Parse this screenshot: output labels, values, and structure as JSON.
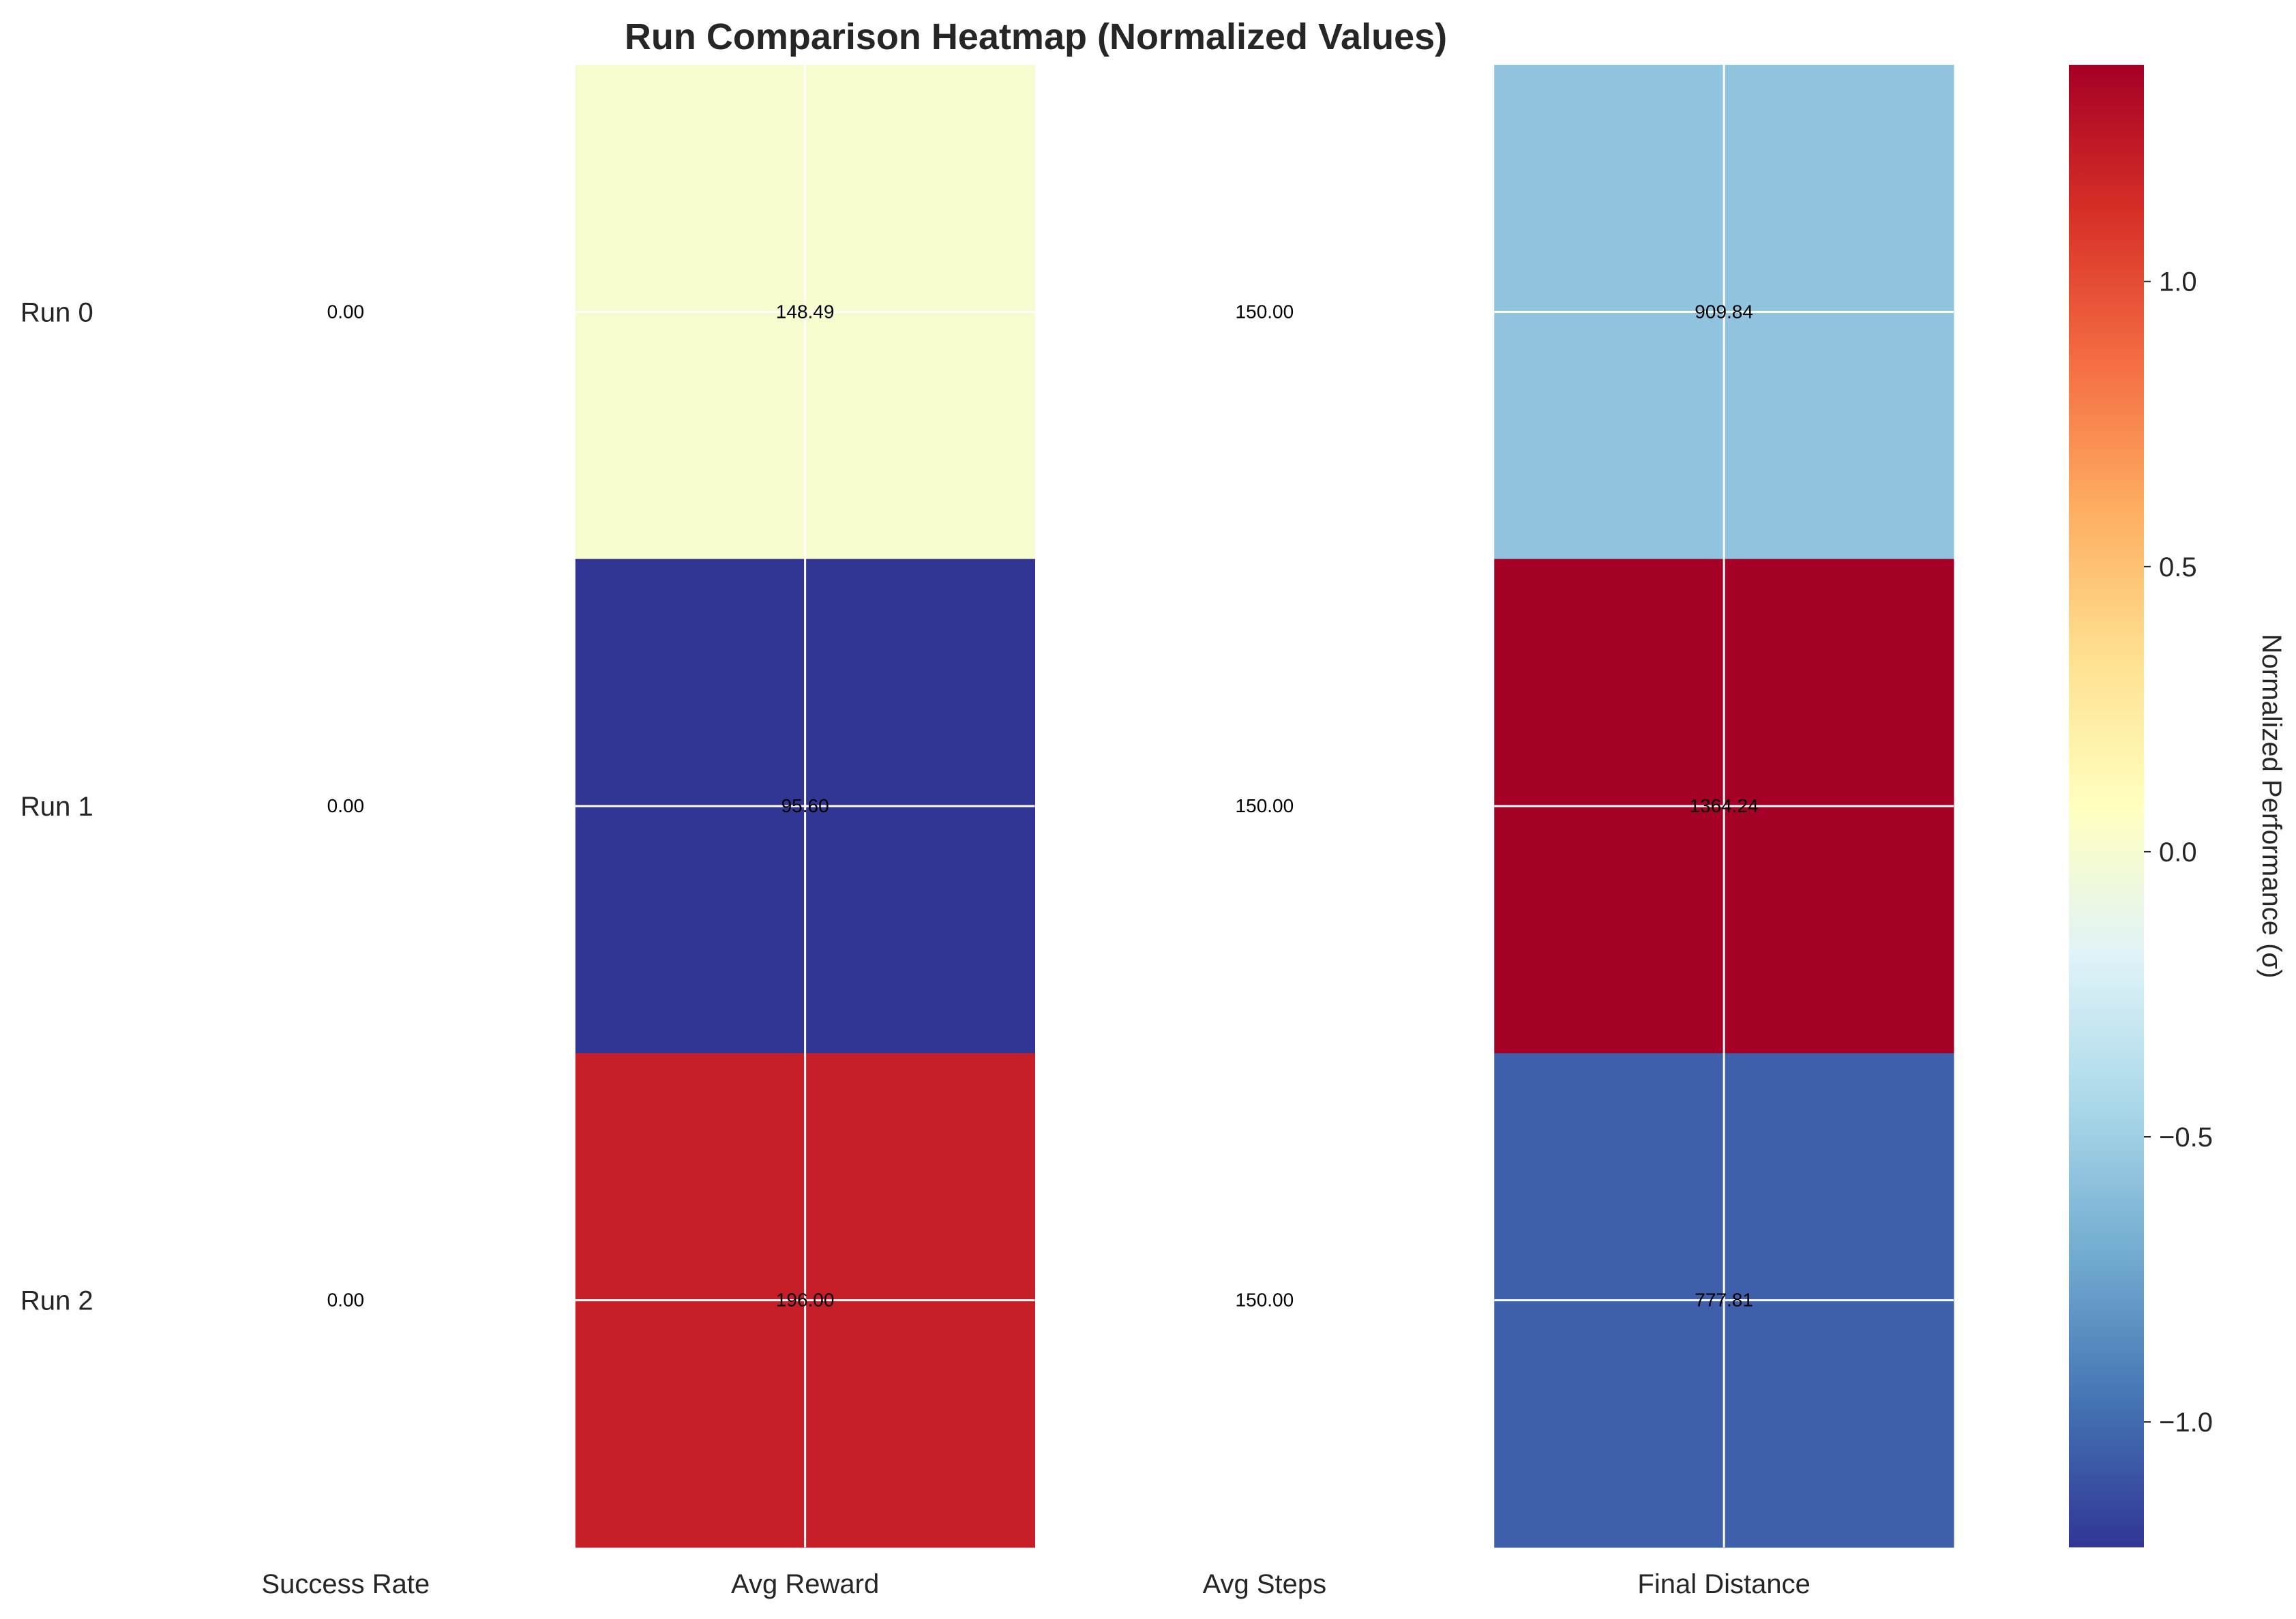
{
  "chart_data": {
    "type": "heatmap",
    "title": "Run Comparison Heatmap (Normalized Values)",
    "rows": [
      "Run 0",
      "Run 1",
      "Run 2"
    ],
    "columns": [
      "Success Rate",
      "Avg Reward",
      "Avg Steps",
      "Final Distance"
    ],
    "annotations": [
      [
        "0.00",
        "148.49",
        "150.00",
        "909.84"
      ],
      [
        "0.00",
        "95.60",
        "150.00",
        "1364.24"
      ],
      [
        "0.00",
        "196.00",
        "150.00",
        "777.81"
      ]
    ],
    "normalized": [
      [
        null,
        0.01,
        null,
        -0.57
      ],
      [
        null,
        -1.22,
        null,
        1.38
      ],
      [
        null,
        1.21,
        null,
        -1.05
      ]
    ],
    "colormap": "RdYlBu_r",
    "colorbar": {
      "label": "Normalized Performance (σ)",
      "range": [
        -1.22,
        1.38
      ],
      "ticks": [
        "−1.0",
        "−0.5",
        "0.0",
        "0.5",
        "1.0"
      ],
      "tick_values": [
        -1.0,
        -0.5,
        0.0,
        0.5,
        1.0
      ]
    },
    "grid": true
  }
}
